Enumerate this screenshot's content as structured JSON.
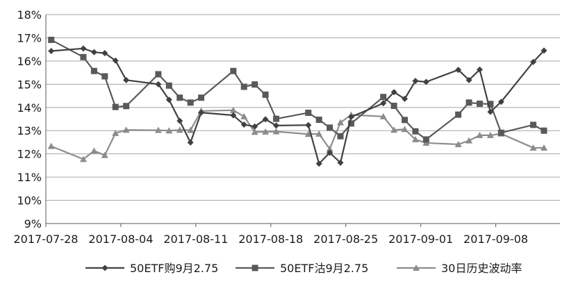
{
  "chart_data": {
    "type": "line",
    "title": "",
    "xlabel": "",
    "ylabel": "",
    "ylim": [
      0.09,
      0.18
    ],
    "y_ticks": [
      "9%",
      "10%",
      "11%",
      "12%",
      "13%",
      "14%",
      "15%",
      "16%",
      "17%",
      "18%"
    ],
    "x_ticks": [
      "2017-07-28",
      "2017-08-04",
      "2017-08-11",
      "2017-08-18",
      "2017-08-25",
      "2017-09-01",
      "2017-09-08"
    ],
    "x": [
      "2017-07-28",
      "2017-07-31",
      "2017-08-01",
      "2017-08-02",
      "2017-08-03",
      "2017-08-04",
      "2017-08-07",
      "2017-08-08",
      "2017-08-09",
      "2017-08-10",
      "2017-08-11",
      "2017-08-14",
      "2017-08-15",
      "2017-08-16",
      "2017-08-17",
      "2017-08-18",
      "2017-08-21",
      "2017-08-22",
      "2017-08-23",
      "2017-08-24",
      "2017-08-25",
      "2017-08-28",
      "2017-08-29",
      "2017-08-30",
      "2017-08-31",
      "2017-09-01",
      "2017-09-04",
      "2017-09-05",
      "2017-09-06",
      "2017-09-07",
      "2017-09-08",
      "2017-09-11",
      "2017-09-12"
    ],
    "grid": "horizontal",
    "legend_position": "bottom",
    "series": [
      {
        "name": "50ETF购9月2.75",
        "marker": "diamond",
        "color": "#404040",
        "values": [
          0.1643,
          0.1654,
          0.1638,
          0.1634,
          0.1602,
          0.1518,
          0.15,
          0.1433,
          0.1342,
          0.1249,
          0.1378,
          0.1366,
          0.1326,
          0.1318,
          0.1349,
          0.1322,
          0.1324,
          0.1158,
          0.1205,
          0.1162,
          0.1359,
          0.1418,
          0.1466,
          0.1437,
          0.1514,
          0.151,
          0.1562,
          0.1518,
          0.1563,
          0.1381,
          0.1424,
          0.1596,
          0.1645
        ]
      },
      {
        "name": "50ETF沽9月2.75",
        "marker": "square",
        "color": "#595959",
        "values": [
          0.1691,
          0.1617,
          0.1557,
          0.1534,
          0.1402,
          0.1406,
          0.1543,
          0.1494,
          0.1442,
          0.1421,
          0.1442,
          0.1557,
          0.1489,
          0.1499,
          0.1455,
          0.1351,
          0.1377,
          0.1347,
          0.1313,
          0.1276,
          0.1331,
          0.1445,
          0.1407,
          0.1346,
          0.1297,
          0.1262,
          0.1369,
          0.1421,
          0.1416,
          0.1415,
          0.1291,
          0.1325,
          0.13
        ]
      },
      {
        "name": "30日历史波动率",
        "marker": "triangle",
        "color": "#8c8c8c",
        "values": [
          0.1233,
          0.1177,
          0.1213,
          0.1194,
          0.1289,
          0.1303,
          0.1302,
          0.13,
          0.1303,
          0.1302,
          0.1385,
          0.1388,
          0.1361,
          0.1294,
          0.1295,
          0.1296,
          0.1285,
          0.1286,
          0.1221,
          0.1335,
          0.1368,
          0.1361,
          0.1303,
          0.1306,
          0.1262,
          0.1247,
          0.1241,
          0.1257,
          0.128,
          0.128,
          0.1287,
          0.1226,
          0.1226
        ]
      }
    ]
  }
}
